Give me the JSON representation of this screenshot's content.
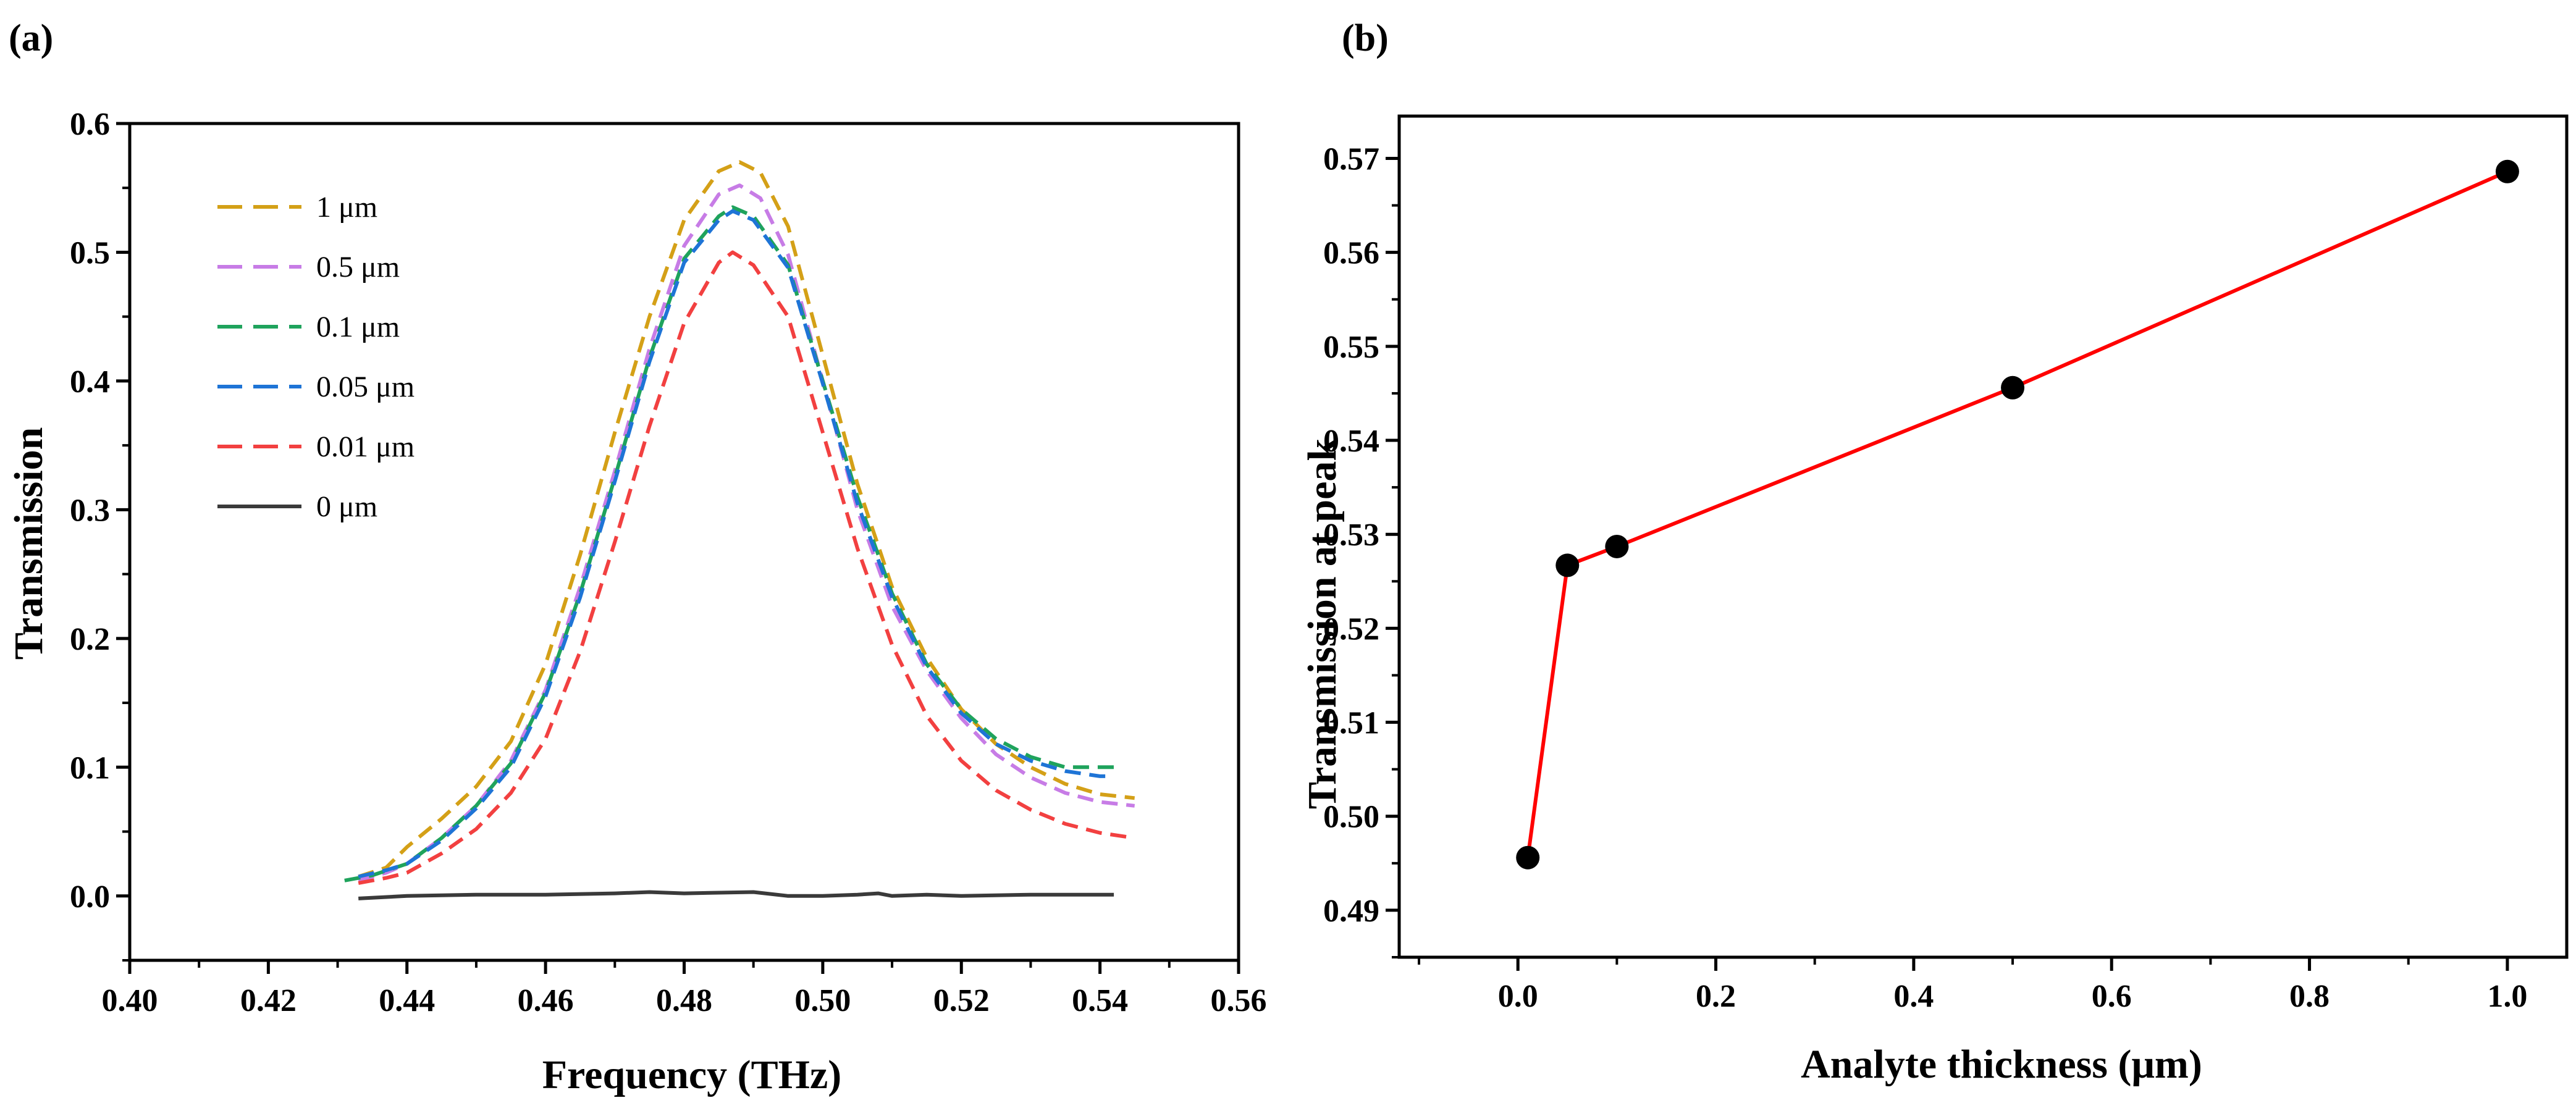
{
  "panels": [
    {
      "label": "(a)"
    },
    {
      "label": "(b)"
    }
  ],
  "chart_data": [
    {
      "type": "line",
      "xlabel": "Frequency (THz)",
      "ylabel": "Transmission",
      "xlim": [
        0.4,
        0.56
      ],
      "ylim": [
        -0.05,
        0.6
      ],
      "xticks": [
        "0.40",
        "0.42",
        "0.44",
        "0.46",
        "0.48",
        "0.50",
        "0.52",
        "0.54",
        "0.56"
      ],
      "yticks": [
        "0.0",
        "0.1",
        "0.2",
        "0.3",
        "0.4",
        "0.5",
        "0.6"
      ],
      "legend_position": "top-left",
      "series": [
        {
          "name": "1 μm",
          "color": "#D4A017",
          "dash": "dashed",
          "points": [
            [
              0.433,
              0.015
            ],
            [
              0.437,
              0.022
            ],
            [
              0.44,
              0.038
            ],
            [
              0.445,
              0.06
            ],
            [
              0.45,
              0.085
            ],
            [
              0.455,
              0.12
            ],
            [
              0.46,
              0.18
            ],
            [
              0.465,
              0.265
            ],
            [
              0.47,
              0.36
            ],
            [
              0.475,
              0.45
            ],
            [
              0.48,
              0.525
            ],
            [
              0.485,
              0.563
            ],
            [
              0.488,
              0.57
            ],
            [
              0.491,
              0.562
            ],
            [
              0.495,
              0.52
            ],
            [
              0.5,
              0.42
            ],
            [
              0.505,
              0.32
            ],
            [
              0.51,
              0.24
            ],
            [
              0.515,
              0.185
            ],
            [
              0.52,
              0.145
            ],
            [
              0.525,
              0.118
            ],
            [
              0.53,
              0.1
            ],
            [
              0.535,
              0.087
            ],
            [
              0.54,
              0.079
            ],
            [
              0.545,
              0.076
            ]
          ]
        },
        {
          "name": "0.5 μm",
          "color": "#C77CE6",
          "dash": "dashed",
          "points": [
            [
              0.433,
              0.012
            ],
            [
              0.437,
              0.018
            ],
            [
              0.44,
              0.025
            ],
            [
              0.445,
              0.045
            ],
            [
              0.45,
              0.07
            ],
            [
              0.455,
              0.105
            ],
            [
              0.46,
              0.16
            ],
            [
              0.465,
              0.24
            ],
            [
              0.47,
              0.33
            ],
            [
              0.475,
              0.425
            ],
            [
              0.48,
              0.505
            ],
            [
              0.485,
              0.545
            ],
            [
              0.488,
              0.552
            ],
            [
              0.491,
              0.542
            ],
            [
              0.495,
              0.498
            ],
            [
              0.5,
              0.4
            ],
            [
              0.505,
              0.3
            ],
            [
              0.51,
              0.225
            ],
            [
              0.515,
              0.175
            ],
            [
              0.52,
              0.138
            ],
            [
              0.525,
              0.11
            ],
            [
              0.53,
              0.092
            ],
            [
              0.535,
              0.08
            ],
            [
              0.54,
              0.073
            ],
            [
              0.545,
              0.07
            ]
          ]
        },
        {
          "name": "0.1 μm",
          "color": "#1FA35C",
          "dash": "dashed",
          "points": [
            [
              0.431,
              0.012
            ],
            [
              0.435,
              0.016
            ],
            [
              0.44,
              0.025
            ],
            [
              0.445,
              0.045
            ],
            [
              0.45,
              0.07
            ],
            [
              0.455,
              0.103
            ],
            [
              0.46,
              0.158
            ],
            [
              0.465,
              0.235
            ],
            [
              0.47,
              0.325
            ],
            [
              0.475,
              0.418
            ],
            [
              0.48,
              0.495
            ],
            [
              0.485,
              0.528
            ],
            [
              0.487,
              0.535
            ],
            [
              0.49,
              0.528
            ],
            [
              0.495,
              0.49
            ],
            [
              0.5,
              0.4
            ],
            [
              0.505,
              0.31
            ],
            [
              0.51,
              0.235
            ],
            [
              0.515,
              0.18
            ],
            [
              0.52,
              0.145
            ],
            [
              0.525,
              0.122
            ],
            [
              0.53,
              0.108
            ],
            [
              0.535,
              0.1
            ],
            [
              0.54,
              0.1
            ],
            [
              0.542,
              0.1
            ]
          ]
        },
        {
          "name": "0.05 μm",
          "color": "#1E74D6",
          "dash": "dashed",
          "points": [
            [
              0.433,
              0.015
            ],
            [
              0.437,
              0.02
            ],
            [
              0.44,
              0.025
            ],
            [
              0.445,
              0.043
            ],
            [
              0.45,
              0.068
            ],
            [
              0.455,
              0.1
            ],
            [
              0.46,
              0.155
            ],
            [
              0.465,
              0.232
            ],
            [
              0.47,
              0.322
            ],
            [
              0.475,
              0.415
            ],
            [
              0.48,
              0.492
            ],
            [
              0.485,
              0.525
            ],
            [
              0.487,
              0.532
            ],
            [
              0.49,
              0.525
            ],
            [
              0.495,
              0.488
            ],
            [
              0.5,
              0.398
            ],
            [
              0.505,
              0.305
            ],
            [
              0.51,
              0.232
            ],
            [
              0.515,
              0.178
            ],
            [
              0.52,
              0.142
            ],
            [
              0.525,
              0.118
            ],
            [
              0.53,
              0.105
            ],
            [
              0.535,
              0.097
            ],
            [
              0.54,
              0.093
            ],
            [
              0.542,
              0.093
            ]
          ]
        },
        {
          "name": "0.01 μm",
          "color": "#F24040",
          "dash": "dashed",
          "points": [
            [
              0.433,
              0.01
            ],
            [
              0.437,
              0.014
            ],
            [
              0.44,
              0.018
            ],
            [
              0.445,
              0.033
            ],
            [
              0.45,
              0.052
            ],
            [
              0.455,
              0.08
            ],
            [
              0.46,
              0.122
            ],
            [
              0.465,
              0.19
            ],
            [
              0.47,
              0.275
            ],
            [
              0.475,
              0.365
            ],
            [
              0.48,
              0.445
            ],
            [
              0.485,
              0.492
            ],
            [
              0.487,
              0.5
            ],
            [
              0.49,
              0.49
            ],
            [
              0.495,
              0.45
            ],
            [
              0.5,
              0.36
            ],
            [
              0.505,
              0.27
            ],
            [
              0.51,
              0.195
            ],
            [
              0.515,
              0.14
            ],
            [
              0.52,
              0.105
            ],
            [
              0.525,
              0.082
            ],
            [
              0.53,
              0.067
            ],
            [
              0.535,
              0.056
            ],
            [
              0.54,
              0.049
            ],
            [
              0.545,
              0.045
            ]
          ]
        },
        {
          "name": "0 μm",
          "color": "#3A3A3A",
          "dash": "solid",
          "points": [
            [
              0.433,
              -0.002
            ],
            [
              0.44,
              0.0
            ],
            [
              0.45,
              0.001
            ],
            [
              0.46,
              0.001
            ],
            [
              0.47,
              0.002
            ],
            [
              0.475,
              0.003
            ],
            [
              0.48,
              0.002
            ],
            [
              0.49,
              0.003
            ],
            [
              0.495,
              0.0
            ],
            [
              0.5,
              0.0
            ],
            [
              0.505,
              0.001
            ],
            [
              0.508,
              0.002
            ],
            [
              0.51,
              0.0
            ],
            [
              0.515,
              0.001
            ],
            [
              0.52,
              0.0
            ],
            [
              0.53,
              0.001
            ],
            [
              0.542,
              0.001
            ]
          ]
        }
      ]
    },
    {
      "type": "line",
      "xlabel": "Analyte thickness (μm)",
      "ylabel": "Transmission at peak",
      "xlim": [
        -0.12,
        1.06
      ],
      "ylim": [
        0.485,
        0.5745
      ],
      "xticks": [
        "0.0",
        "0.2",
        "0.4",
        "0.6",
        "0.8",
        "1.0"
      ],
      "yticks": [
        "0.49",
        "0.50",
        "0.51",
        "0.52",
        "0.53",
        "0.54",
        "0.55",
        "0.56",
        "0.57"
      ],
      "line_color": "#FF0000",
      "marker_color": "#000000",
      "x": [
        0.01,
        0.05,
        0.1,
        0.5,
        1.0
      ],
      "y": [
        0.4956,
        0.5267,
        0.5287,
        0.5456,
        0.5686
      ]
    }
  ]
}
